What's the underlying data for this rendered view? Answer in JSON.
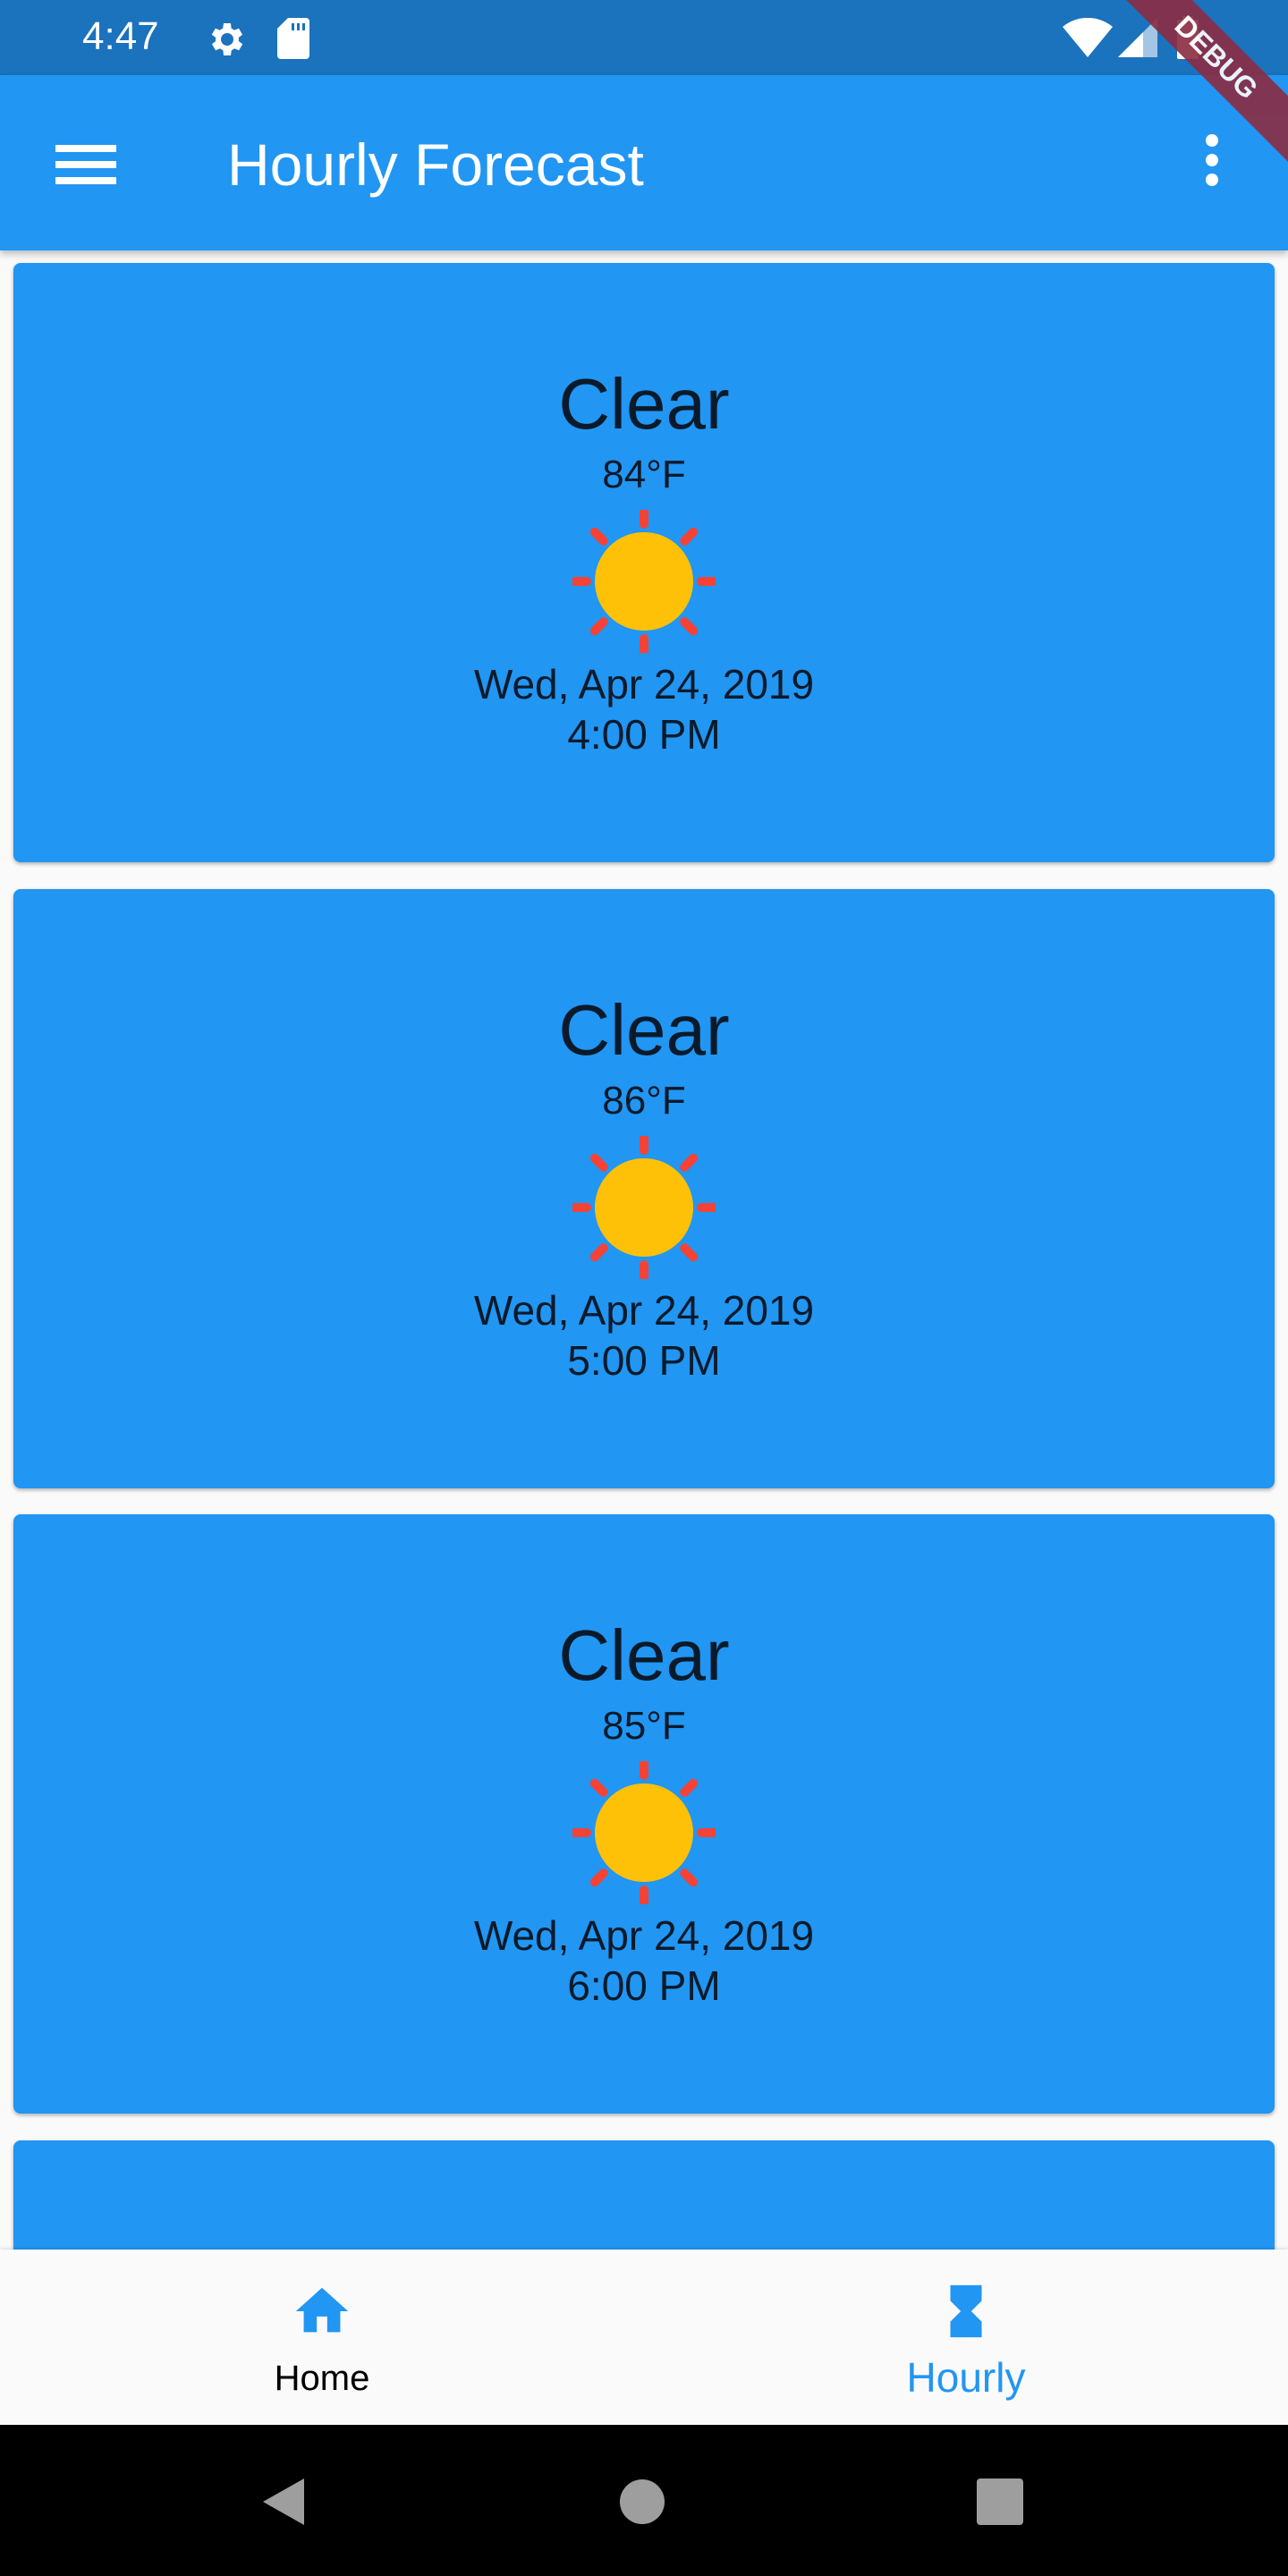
{
  "status_bar": {
    "time": "4:47",
    "icons": [
      "gear-icon",
      "sd-card-icon",
      "wifi-icon",
      "signal-icon",
      "battery-icon"
    ]
  },
  "debug_banner": "DEBUG",
  "app_bar": {
    "title": "Hourly Forecast",
    "menu_icon": "hamburger-menu-icon",
    "more_icon": "more-vert-icon"
  },
  "forecasts": [
    {
      "condition": "Clear",
      "temp": "84°F",
      "icon": "sun-icon",
      "date": "Wed, Apr 24, 2019",
      "time": "4:00 PM"
    },
    {
      "condition": "Clear",
      "temp": "86°F",
      "icon": "sun-icon",
      "date": "Wed, Apr 24, 2019",
      "time": "5:00 PM"
    },
    {
      "condition": "Clear",
      "temp": "85°F",
      "icon": "sun-icon",
      "date": "Wed, Apr 24, 2019",
      "time": "6:00 PM"
    }
  ],
  "bottom_nav": {
    "items": [
      {
        "label": "Home",
        "icon": "home-icon"
      },
      {
        "label": "Hourly",
        "icon": "hourglass-icon",
        "active": true
      }
    ]
  },
  "colors": {
    "primary": "#2196f3",
    "status_bar": "#1b72bd",
    "sun": "#ffc107",
    "rays": "#f44336"
  }
}
